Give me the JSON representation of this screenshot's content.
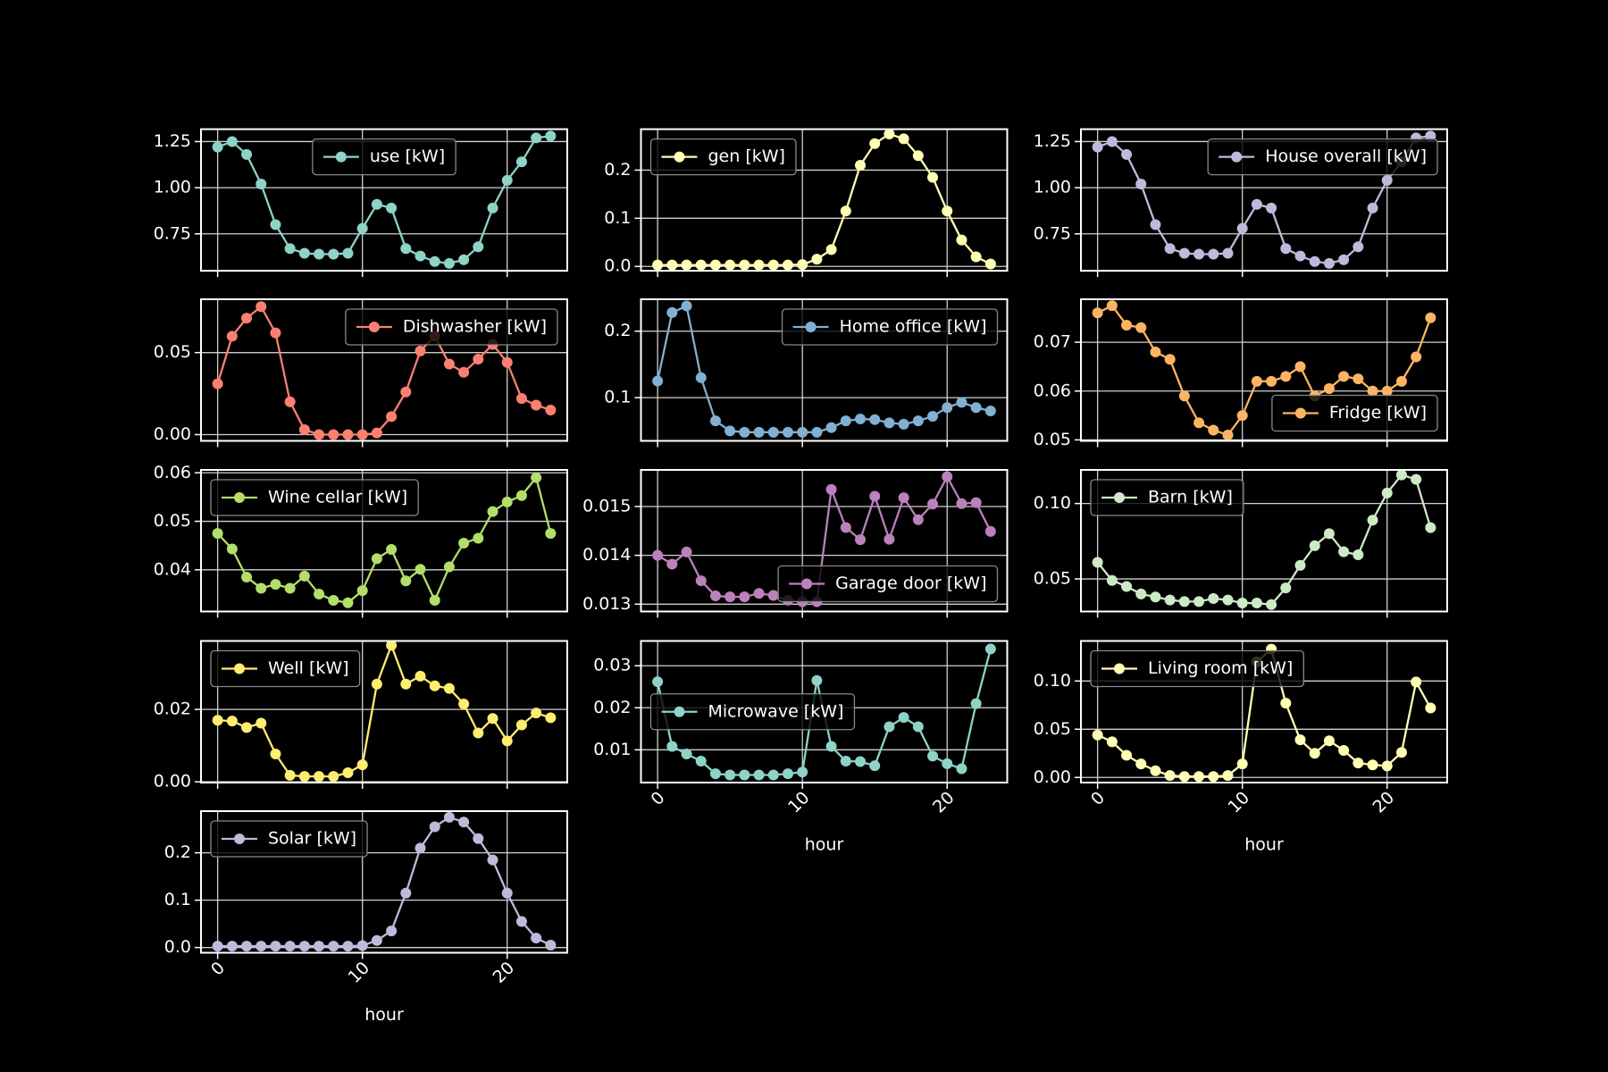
{
  "chart_data": [
    {
      "type": "line",
      "x": [
        0,
        1,
        2,
        3,
        4,
        5,
        6,
        7,
        8,
        9,
        10,
        11,
        12,
        13,
        14,
        15,
        16,
        17,
        18,
        19,
        20,
        21,
        22,
        23
      ],
      "series": [
        {
          "name": "use [kW]",
          "color": "#8dd3c7",
          "values": [
            1.22,
            1.25,
            1.18,
            1.02,
            0.8,
            0.67,
            0.645,
            0.64,
            0.64,
            0.645,
            0.78,
            0.91,
            0.89,
            0.67,
            0.63,
            0.6,
            0.59,
            0.61,
            0.68,
            0.89,
            1.04,
            1.14,
            1.27,
            1.28
          ]
        }
      ],
      "xlim": [
        -1.15,
        24.15
      ],
      "xticks": [
        0,
        10,
        20
      ],
      "ylim": [
        0.55,
        1.317
      ],
      "yticks": [
        0.75,
        {
          "value": 1,
          "label": "1.00"
        },
        1.25
      ],
      "grid": true,
      "legend": "upper center"
    },
    {
      "type": "line",
      "x": [
        0,
        1,
        2,
        3,
        4,
        5,
        6,
        7,
        8,
        9,
        10,
        11,
        12,
        13,
        14,
        15,
        16,
        17,
        18,
        19,
        20,
        21,
        22,
        23
      ],
      "series": [
        {
          "name": "gen [kW]",
          "color": "#ffffb3",
          "values": [
            0.003,
            0.003,
            0.003,
            0.003,
            0.003,
            0.003,
            0.003,
            0.003,
            0.003,
            0.003,
            0.004,
            0.015,
            0.035,
            0.115,
            0.21,
            0.255,
            0.275,
            0.265,
            0.23,
            0.185,
            0.115,
            0.055,
            0.02,
            0.005
          ]
        }
      ],
      "xlim": [
        -1.15,
        24.15
      ],
      "xticks": [
        0,
        10,
        20
      ],
      "ylim": [
        -0.009,
        0.285
      ],
      "yticks": [
        {
          "value": 0,
          "label": "0.0"
        },
        0.1,
        0.2
      ],
      "grid": true,
      "legend": "upper left"
    },
    {
      "type": "line",
      "x": [
        0,
        1,
        2,
        3,
        4,
        5,
        6,
        7,
        8,
        9,
        10,
        11,
        12,
        13,
        14,
        15,
        16,
        17,
        18,
        19,
        20,
        21,
        22,
        23
      ],
      "series": [
        {
          "name": "House overall [kW]",
          "color": "#bebada",
          "values": [
            1.22,
            1.25,
            1.18,
            1.02,
            0.8,
            0.67,
            0.645,
            0.64,
            0.64,
            0.645,
            0.78,
            0.91,
            0.89,
            0.67,
            0.63,
            0.6,
            0.59,
            0.61,
            0.68,
            0.89,
            1.04,
            1.14,
            1.27,
            1.28
          ]
        }
      ],
      "xlim": [
        -1.15,
        24.15
      ],
      "xticks": [
        0,
        10,
        20
      ],
      "ylim": [
        0.55,
        1.317
      ],
      "yticks": [
        0.75,
        {
          "value": 1,
          "label": "1.00"
        },
        1.25
      ],
      "grid": true,
      "legend": "upper right"
    },
    {
      "type": "line",
      "x": [
        0,
        1,
        2,
        3,
        4,
        5,
        6,
        7,
        8,
        9,
        10,
        11,
        12,
        13,
        14,
        15,
        16,
        17,
        18,
        19,
        20,
        21,
        22,
        23
      ],
      "series": [
        {
          "name": "Dishwasher [kW]",
          "color": "#fb8072",
          "values": [
            0.031,
            0.06,
            0.071,
            0.078,
            0.062,
            0.02,
            0.003,
            0.0,
            0.0,
            0.0,
            0.0,
            0.001,
            0.011,
            0.026,
            0.051,
            0.06,
            0.043,
            0.038,
            0.046,
            0.055,
            0.044,
            0.022,
            0.018,
            0.015
          ]
        }
      ],
      "xlim": [
        -1.15,
        24.15
      ],
      "xticks": [
        0,
        10,
        20
      ],
      "ylim": [
        -0.0038,
        0.0825
      ],
      "yticks": [
        {
          "value": 0,
          "label": "0.00"
        },
        0.05
      ],
      "grid": true,
      "legend": "upper right"
    },
    {
      "type": "line",
      "x": [
        0,
        1,
        2,
        3,
        4,
        5,
        6,
        7,
        8,
        9,
        10,
        11,
        12,
        13,
        14,
        15,
        16,
        17,
        18,
        19,
        20,
        21,
        22,
        23
      ],
      "series": [
        {
          "name": "Home office [kW]",
          "color": "#80b1d3",
          "values": [
            0.125,
            0.228,
            0.238,
            0.13,
            0.065,
            0.05,
            0.048,
            0.048,
            0.048,
            0.048,
            0.048,
            0.048,
            0.055,
            0.065,
            0.068,
            0.067,
            0.062,
            0.06,
            0.065,
            0.072,
            0.085,
            0.093,
            0.085,
            0.08
          ]
        }
      ],
      "xlim": [
        -1.15,
        24.15
      ],
      "xticks": [
        0,
        10,
        20
      ],
      "ylim": [
        0.035,
        0.248
      ],
      "yticks": [
        0.1,
        0.2
      ],
      "grid": true,
      "legend": "upper right"
    },
    {
      "type": "line",
      "x": [
        0,
        1,
        2,
        3,
        4,
        5,
        6,
        7,
        8,
        9,
        10,
        11,
        12,
        13,
        14,
        15,
        16,
        17,
        18,
        19,
        20,
        21,
        22,
        23
      ],
      "series": [
        {
          "name": "Fridge [kW]",
          "color": "#fdb462",
          "values": [
            0.076,
            0.0775,
            0.0735,
            0.073,
            0.068,
            0.0665,
            0.059,
            0.0535,
            0.052,
            0.051,
            0.055,
            0.062,
            0.062,
            0.063,
            0.065,
            0.059,
            0.0605,
            0.063,
            0.0625,
            0.06,
            0.06,
            0.062,
            0.067,
            0.075
          ]
        }
      ],
      "xlim": [
        -1.15,
        24.15
      ],
      "xticks": [
        0,
        10,
        20
      ],
      "ylim": [
        0.0498,
        0.0788
      ],
      "yticks": [
        0.05,
        0.06,
        0.07
      ],
      "grid": true,
      "legend": "lower right"
    },
    {
      "type": "line",
      "x": [
        0,
        1,
        2,
        3,
        4,
        5,
        6,
        7,
        8,
        9,
        10,
        11,
        12,
        13,
        14,
        15,
        16,
        17,
        18,
        19,
        20,
        21,
        22,
        23
      ],
      "series": [
        {
          "name": "Wine cellar [kW]",
          "color": "#b3de69",
          "values": [
            0.0475,
            0.0443,
            0.0385,
            0.0362,
            0.037,
            0.0362,
            0.0387,
            0.035,
            0.0337,
            0.0332,
            0.0357,
            0.0423,
            0.0442,
            0.0377,
            0.0401,
            0.0337,
            0.0406,
            0.0455,
            0.0465,
            0.052,
            0.054,
            0.0553,
            0.059,
            0.0475
          ]
        }
      ],
      "xlim": [
        -1.15,
        24.15
      ],
      "xticks": [
        0,
        10,
        20
      ],
      "ylim": [
        0.0314,
        0.0606
      ],
      "yticks": [
        0.04,
        0.05,
        0.06
      ],
      "grid": true,
      "legend": "upper left"
    },
    {
      "type": "line",
      "x": [
        0,
        1,
        2,
        3,
        4,
        5,
        6,
        7,
        8,
        9,
        10,
        11,
        12,
        13,
        14,
        15,
        16,
        17,
        18,
        19,
        20,
        21,
        22,
        23
      ],
      "series": [
        {
          "name": "Garage door [kW]",
          "color": "#bc80bd",
          "values": [
            0.014,
            0.01382,
            0.01407,
            0.01348,
            0.01317,
            0.01315,
            0.01315,
            0.01322,
            0.01318,
            0.01308,
            0.01305,
            0.01305,
            0.01535,
            0.01457,
            0.01432,
            0.01521,
            0.01433,
            0.01518,
            0.01473,
            0.01505,
            0.01561,
            0.01506,
            0.01508,
            0.01449
          ]
        }
      ],
      "xlim": [
        -1.15,
        24.15
      ],
      "xticks": [
        0,
        10,
        20
      ],
      "ylim": [
        0.01285,
        0.01575
      ],
      "yticks": [
        0.013,
        0.014,
        0.015
      ],
      "grid": true,
      "legend": "lower right"
    },
    {
      "type": "line",
      "x": [
        0,
        1,
        2,
        3,
        4,
        5,
        6,
        7,
        8,
        9,
        10,
        11,
        12,
        13,
        14,
        15,
        16,
        17,
        18,
        19,
        20,
        21,
        22,
        23
      ],
      "series": [
        {
          "name": "Barn [kW]",
          "color": "#ccebc5",
          "values": [
            0.061,
            0.049,
            0.045,
            0.04,
            0.038,
            0.036,
            0.035,
            0.035,
            0.037,
            0.036,
            0.034,
            0.034,
            0.033,
            0.044,
            0.059,
            0.072,
            0.08,
            0.068,
            0.066,
            0.089,
            0.107,
            0.119,
            0.116,
            0.084
          ]
        }
      ],
      "xlim": [
        -1.15,
        24.15
      ],
      "xticks": [
        0,
        10,
        20
      ],
      "ylim": [
        0.0284,
        0.1223
      ],
      "yticks": [
        0.05,
        {
          "value": 0.1,
          "label": "0.10"
        }
      ],
      "grid": true,
      "legend": "upper left"
    },
    {
      "type": "line",
      "x": [
        0,
        1,
        2,
        3,
        4,
        5,
        6,
        7,
        8,
        9,
        10,
        11,
        12,
        13,
        14,
        15,
        16,
        17,
        18,
        19,
        20,
        21,
        22,
        23
      ],
      "series": [
        {
          "name": "Well [kW]",
          "color": "#ffed6f",
          "values": [
            0.017,
            0.0168,
            0.015,
            0.0162,
            0.0077,
            0.0018,
            0.0015,
            0.0015,
            0.0015,
            0.0025,
            0.0047,
            0.027,
            0.0377,
            0.027,
            0.0292,
            0.0265,
            0.0258,
            0.0215,
            0.0135,
            0.0175,
            0.0113,
            0.0157,
            0.019,
            0.0177
          ]
        }
      ],
      "xlim": [
        -1.15,
        24.15
      ],
      "xticks": [
        0,
        10,
        20
      ],
      "ylim": [
        -0.0002,
        0.0389
      ],
      "yticks": [
        {
          "value": 0,
          "label": "0.00"
        },
        0.02
      ],
      "grid": true,
      "legend": "upper left"
    },
    {
      "type": "line",
      "x": [
        0,
        1,
        2,
        3,
        4,
        5,
        6,
        7,
        8,
        9,
        10,
        11,
        12,
        13,
        14,
        15,
        16,
        17,
        18,
        19,
        20,
        21,
        22,
        23
      ],
      "series": [
        {
          "name": "Microwave [kW]",
          "color": "#8dd3c7",
          "values": [
            0.0262,
            0.0108,
            0.009,
            0.0073,
            0.0043,
            0.004,
            0.004,
            0.004,
            0.004,
            0.0043,
            0.0047,
            0.0265,
            0.0108,
            0.0073,
            0.0072,
            0.0062,
            0.0155,
            0.0177,
            0.0155,
            0.0085,
            0.0067,
            0.0055,
            0.021,
            0.034
          ]
        }
      ],
      "xlim": [
        -1.15,
        24.15
      ],
      "xticks": [
        0,
        10,
        20
      ],
      "ylim": [
        0.0022,
        0.0359
      ],
      "yticks": [
        0.01,
        0.02,
        0.03
      ],
      "grid": true,
      "legend": "center left",
      "xlabel": "hour"
    },
    {
      "type": "line",
      "x": [
        0,
        1,
        2,
        3,
        4,
        5,
        6,
        7,
        8,
        9,
        10,
        11,
        12,
        13,
        14,
        15,
        16,
        17,
        18,
        19,
        20,
        21,
        22,
        23
      ],
      "series": [
        {
          "name": "Living room [kW]",
          "color": "#ffffb3",
          "values": [
            0.044,
            0.037,
            0.023,
            0.014,
            0.007,
            0.002,
            0.001,
            0.001,
            0.001,
            0.002,
            0.014,
            0.12,
            0.133,
            0.077,
            0.039,
            0.025,
            0.038,
            0.028,
            0.015,
            0.013,
            0.012,
            0.026,
            0.099,
            0.072
          ]
        }
      ],
      "xlim": [
        -1.15,
        24.15
      ],
      "xticks": [
        0,
        10,
        20
      ],
      "ylim": [
        -0.0053,
        0.1415
      ],
      "yticks": [
        {
          "value": 0,
          "label": "0.00"
        },
        0.05,
        {
          "value": 0.1,
          "label": "0.10"
        }
      ],
      "grid": true,
      "legend": "upper left",
      "xlabel": "hour"
    },
    {
      "type": "line",
      "x": [
        0,
        1,
        2,
        3,
        4,
        5,
        6,
        7,
        8,
        9,
        10,
        11,
        12,
        13,
        14,
        15,
        16,
        17,
        18,
        19,
        20,
        21,
        22,
        23
      ],
      "series": [
        {
          "name": "Solar [kW]",
          "color": "#bebada",
          "values": [
            0.003,
            0.003,
            0.003,
            0.003,
            0.003,
            0.003,
            0.003,
            0.003,
            0.003,
            0.003,
            0.004,
            0.015,
            0.035,
            0.115,
            0.21,
            0.255,
            0.275,
            0.265,
            0.23,
            0.185,
            0.115,
            0.055,
            0.02,
            0.005
          ]
        }
      ],
      "xlim": [
        -1.15,
        24.15
      ],
      "xticks": [
        0,
        10,
        20
      ],
      "ylim": [
        -0.011,
        0.288
      ],
      "yticks": [
        {
          "value": 0,
          "label": "0.0"
        },
        0.1,
        0.2
      ],
      "grid": true,
      "legend": "upper left",
      "xlabel": "hour"
    }
  ]
}
